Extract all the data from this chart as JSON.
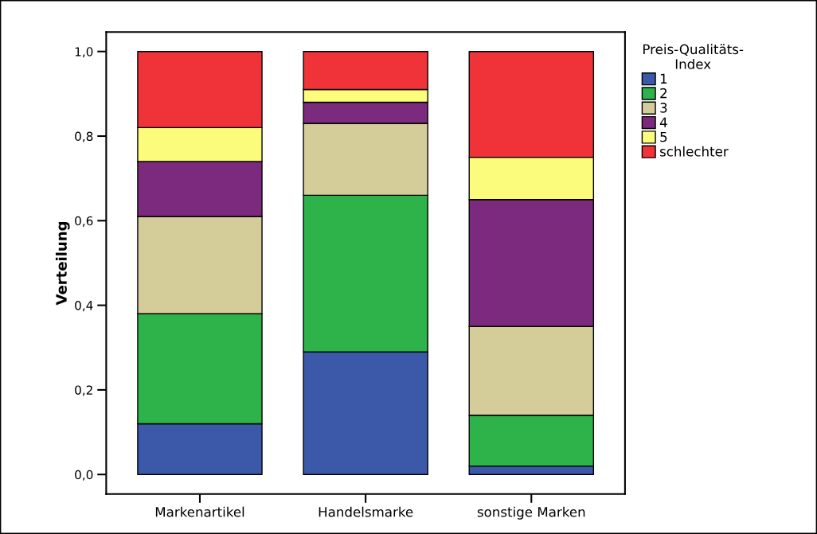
{
  "chart_data": {
    "type": "bar",
    "stacked": true,
    "ylabel": "Verteilung",
    "legend_title": "Preis-Qualitäts-\nIndex",
    "categories": [
      "Markenartikel",
      "Handelsmarke",
      "sonstige Marken"
    ],
    "series": [
      {
        "name": "1",
        "color": "#3c58a8",
        "values": [
          0.12,
          0.29,
          0.02
        ]
      },
      {
        "name": "2",
        "color": "#2db34a",
        "values": [
          0.26,
          0.37,
          0.12
        ]
      },
      {
        "name": "3",
        "color": "#d4cd9a",
        "values": [
          0.23,
          0.17,
          0.21
        ]
      },
      {
        "name": "4",
        "color": "#7b2a7d",
        "values": [
          0.13,
          0.05,
          0.3
        ]
      },
      {
        "name": "5",
        "color": "#fcfc7c",
        "values": [
          0.08,
          0.03,
          0.1
        ]
      },
      {
        "name": "schlechter",
        "color": "#f03239",
        "values": [
          0.18,
          0.09,
          0.25
        ]
      }
    ],
    "ylim": [
      -0.046,
      1.046
    ],
    "yticks": [
      {
        "value": 0,
        "label": "0,0"
      },
      {
        "value": 0.2,
        "label": "0,2"
      },
      {
        "value": 0.4,
        "label": "0,4"
      },
      {
        "value": 0.6,
        "label": "0,6"
      },
      {
        "value": 0.8,
        "label": "0,8"
      },
      {
        "value": 1.0,
        "label": "1,0"
      }
    ],
    "grid": false,
    "legend": "top right"
  }
}
